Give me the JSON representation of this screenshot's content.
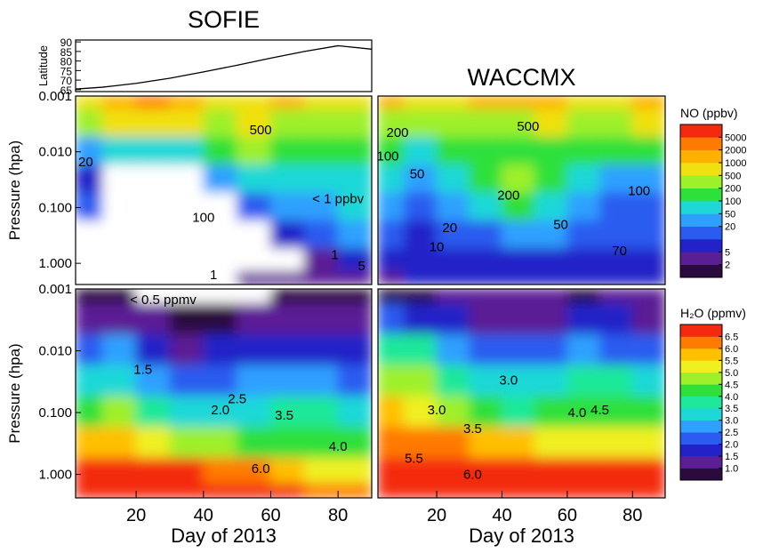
{
  "chart_data": [
    {
      "type": "line",
      "title": "SOFIE",
      "ylabel": "Latitude",
      "color": "#000000",
      "x": [
        2,
        10,
        20,
        30,
        40,
        50,
        60,
        70,
        80,
        90
      ],
      "values": [
        65.3,
        66.3,
        68.3,
        71,
        74.3,
        77.8,
        81.5,
        85,
        88,
        86.2
      ],
      "xlim": [
        2,
        90
      ],
      "ylim": [
        64,
        91
      ],
      "yticks": [
        65,
        70,
        75,
        80,
        85,
        90
      ]
    },
    {
      "type": "contour",
      "ylabel": "Pressure (hpa)",
      "log_y": true,
      "x": [
        5,
        15,
        25,
        35,
        45,
        55,
        65,
        75,
        85
      ],
      "y": [
        0.001,
        0.003,
        0.01,
        0.03,
        0.1,
        0.3,
        1,
        2
      ],
      "z": [
        [
          500,
          1000,
          2000,
          1000,
          500,
          500,
          1000,
          500,
          500
        ],
        [
          200,
          500,
          500,
          500,
          200,
          500,
          200,
          200,
          200
        ],
        [
          20,
          50,
          50,
          50,
          100,
          200,
          100,
          100,
          100
        ],
        [
          5,
          0.5,
          0.5,
          0.5,
          20,
          50,
          50,
          50,
          50
        ],
        [
          10,
          0.5,
          0.5,
          0.5,
          0.5,
          10,
          20,
          20,
          50
        ],
        [
          0.5,
          0.5,
          0.5,
          0.5,
          0.5,
          0.5,
          5,
          10,
          20
        ],
        [
          0.5,
          0.5,
          0.5,
          0.5,
          0.5,
          0.5,
          0.5,
          2,
          5
        ],
        [
          0.5,
          0.5,
          0.5,
          0.5,
          0.5,
          2,
          2,
          2,
          2
        ]
      ],
      "xlim": [
        2,
        90
      ],
      "ylim": [
        2.4,
        0.001
      ],
      "yticks": [
        0.001,
        {
          "value": 0.01,
          "label": "0.010"
        },
        {
          "value": 0.1,
          "label": "0.100"
        },
        {
          "value": 1,
          "label": "1.000"
        }
      ],
      "annotations": [
        {
          "text": "500",
          "x": 57,
          "y": 0.004
        },
        {
          "text": "20",
          "x": 5,
          "y": 0.015
        },
        {
          "text": "100",
          "x": 40,
          "y": 0.15
        },
        {
          "text": "< 1 ppbv",
          "x": 80,
          "y": 0.07
        },
        {
          "text": "1",
          "x": 79,
          "y": 0.7
        },
        {
          "text": "5",
          "x": 87,
          "y": 1.1
        },
        {
          "text": "1",
          "x": 43,
          "y": 1.6
        }
      ]
    },
    {
      "type": "contour",
      "title": "WACCMX",
      "log_y": true,
      "x": [
        5,
        15,
        25,
        35,
        45,
        55,
        65,
        75,
        85
      ],
      "y": [
        0.001,
        0.003,
        0.01,
        0.03,
        0.1,
        0.3,
        1,
        2
      ],
      "z": [
        [
          1000,
          500,
          500,
          1000,
          1000,
          1000,
          500,
          500,
          1000
        ],
        [
          200,
          200,
          200,
          200,
          200,
          500,
          200,
          200,
          500
        ],
        [
          100,
          50,
          100,
          100,
          100,
          100,
          100,
          100,
          100
        ],
        [
          50,
          20,
          50,
          100,
          200,
          100,
          50,
          20,
          20
        ],
        [
          20,
          10,
          20,
          50,
          100,
          50,
          20,
          10,
          10
        ],
        [
          10,
          5,
          10,
          10,
          20,
          20,
          10,
          10,
          10
        ],
        [
          5,
          5,
          5,
          5,
          5,
          5,
          5,
          5,
          5
        ],
        [
          2,
          5,
          5,
          5,
          5,
          5,
          5,
          5,
          5
        ]
      ],
      "xlim": [
        2,
        90
      ],
      "ylim": [
        2.4,
        0.001
      ],
      "annotations": [
        {
          "text": "200",
          "x": 8,
          "y": 0.0045
        },
        {
          "text": "100",
          "x": 5,
          "y": 0.012
        },
        {
          "text": "50",
          "x": 14,
          "y": 0.025
        },
        {
          "text": "500",
          "x": 48,
          "y": 0.0035
        },
        {
          "text": "200",
          "x": 42,
          "y": 0.06
        },
        {
          "text": "20",
          "x": 24,
          "y": 0.23
        },
        {
          "text": "10",
          "x": 20,
          "y": 0.5
        },
        {
          "text": "50",
          "x": 58,
          "y": 0.2
        },
        {
          "text": "100",
          "x": 82,
          "y": 0.05
        },
        {
          "text": "70",
          "x": 76,
          "y": 0.6
        }
      ]
    },
    {
      "type": "contour",
      "ylabel": "Pressure (hpa)",
      "xlabel": "Day of 2013",
      "log_y": true,
      "x": [
        5,
        15,
        25,
        35,
        45,
        55,
        65,
        75,
        85
      ],
      "y": [
        0.001,
        0.003,
        0.01,
        0.03,
        0.1,
        0.3,
        1,
        2
      ],
      "z": [
        [
          0.8,
          0.8,
          0.4,
          0.4,
          0.4,
          0.4,
          0.8,
          0.8,
          0.8
        ],
        [
          1.2,
          1.2,
          1.2,
          0.8,
          0.8,
          1.2,
          1.2,
          1.2,
          1.2
        ],
        [
          2.2,
          2.5,
          1.8,
          1.4,
          1.6,
          1.8,
          1.8,
          1.8,
          1.8
        ],
        [
          3.2,
          3.2,
          2.8,
          2.2,
          2.3,
          2.7,
          2.8,
          2.5,
          2.2
        ],
        [
          4.2,
          4.5,
          3.8,
          3.2,
          3,
          3.3,
          3.5,
          3.5,
          3
        ],
        [
          5.5,
          5.5,
          5.2,
          4.8,
          4.5,
          4,
          4,
          4.3,
          4
        ],
        [
          6.8,
          6.8,
          6.8,
          6.6,
          6.3,
          6,
          5.5,
          5.3,
          5
        ],
        [
          6.8,
          6.8,
          6.8,
          6.8,
          6.8,
          6.8,
          6.6,
          6.3,
          6
        ]
      ],
      "xlim": [
        2,
        90
      ],
      "ylim": [
        2.4,
        0.001
      ],
      "xticks": [
        20,
        40,
        60,
        80
      ],
      "yticks": [
        0.001,
        {
          "value": 0.01,
          "label": "0.010"
        },
        {
          "value": 0.1,
          "label": "0.100"
        },
        {
          "value": 1,
          "label": "1.000"
        }
      ],
      "annotations": [
        {
          "text": "< 0.5 ppmv",
          "x": 28,
          "y": 0.0015
        },
        {
          "text": "1.5",
          "x": 22,
          "y": 0.02
        },
        {
          "text": "2.5",
          "x": 50,
          "y": 0.06
        },
        {
          "text": "2.0",
          "x": 45,
          "y": 0.09
        },
        {
          "text": "3.5",
          "x": 64,
          "y": 0.11
        },
        {
          "text": "4.0",
          "x": 80,
          "y": 0.35
        },
        {
          "text": "6.0",
          "x": 57,
          "y": 0.8
        }
      ]
    },
    {
      "type": "contour",
      "xlabel": "Day of 2013",
      "log_y": true,
      "x": [
        5,
        15,
        25,
        35,
        45,
        55,
        65,
        75,
        85
      ],
      "y": [
        0.001,
        0.003,
        0.01,
        0.03,
        0.1,
        0.3,
        1,
        2
      ],
      "z": [
        [
          0.8,
          0.8,
          1.2,
          1.2,
          1.2,
          1.2,
          0.8,
          1.2,
          1.2
        ],
        [
          2.2,
          1.8,
          1.6,
          1.4,
          1.4,
          1.4,
          1.6,
          1.6,
          1.4
        ],
        [
          3.8,
          3.5,
          2.5,
          2.2,
          2.3,
          2.2,
          2.5,
          2.3,
          2
        ],
        [
          4.8,
          4.5,
          3.5,
          3,
          3,
          3.2,
          3.8,
          3.5,
          3.2
        ],
        [
          5.5,
          5.3,
          4.5,
          4,
          3.8,
          4,
          4.2,
          4.3,
          4.3
        ],
        [
          6.2,
          6.2,
          6,
          5.8,
          5.5,
          5.3,
          5.2,
          5.3,
          5.3
        ],
        [
          6.8,
          6.8,
          6.8,
          6.8,
          6.6,
          6.6,
          6.6,
          6.6,
          6.6
        ],
        [
          6.8,
          6.8,
          6.8,
          6.8,
          6.8,
          6.8,
          6.8,
          6.8,
          6.8
        ]
      ],
      "xlim": [
        2,
        90
      ],
      "ylim": [
        2.4,
        0.001
      ],
      "xticks": [
        20,
        40,
        60,
        80
      ],
      "annotations": [
        {
          "text": "3.0",
          "x": 42,
          "y": 0.03
        },
        {
          "text": "3.0",
          "x": 20,
          "y": 0.09
        },
        {
          "text": "3.5",
          "x": 31,
          "y": 0.18
        },
        {
          "text": "5.5",
          "x": 13,
          "y": 0.55
        },
        {
          "text": "6.0",
          "x": 31,
          "y": 1
        },
        {
          "text": "4.0",
          "x": 63,
          "y": 0.1
        },
        {
          "text": "4.5",
          "x": 70,
          "y": 0.09
        }
      ]
    },
    {
      "type": "colorbar",
      "label": "NO (ppbv)",
      "levels": [
        1,
        2,
        5,
        10,
        20,
        50,
        100,
        200,
        500,
        1000,
        2000,
        5000,
        10000
      ],
      "colors": [
        "#2b0a3d",
        "#5b1f95",
        "#2222c8",
        "#2a5cf0",
        "#2fa0ff",
        "#1ed8d8",
        "#2ee03a",
        "#9ef02a",
        "#f0e010",
        "#ffb000",
        "#ff7a00",
        "#f42a10"
      ],
      "ticks": [
        2,
        5,
        20,
        50,
        100,
        200,
        500,
        1000,
        2000,
        5000
      ]
    },
    {
      "type": "colorbar",
      "label": "H₂O (ppmv)",
      "levels": [
        0.5,
        1,
        1.5,
        2,
        2.5,
        3,
        3.5,
        4,
        4.5,
        5,
        5.5,
        6,
        6.5,
        7
      ],
      "colors": [
        "#2b0a3d",
        "#5b1f95",
        "#2222c8",
        "#2a5cf0",
        "#2fa0ff",
        "#1ed8d8",
        "#1ee89a",
        "#2ee03a",
        "#9ef02a",
        "#f0f020",
        "#ffc000",
        "#ff7a00",
        "#f42a10"
      ],
      "ticks": [
        {
          "value": 1,
          "label": "1.0"
        },
        1.5,
        {
          "value": 2,
          "label": "2.0"
        },
        2.5,
        {
          "value": 3,
          "label": "3.0"
        },
        3.5,
        {
          "value": 4,
          "label": "4.0"
        },
        4.5,
        {
          "value": 5,
          "label": "5.0"
        },
        5.5,
        {
          "value": 6,
          "label": "6.0"
        },
        6.5
      ]
    }
  ]
}
